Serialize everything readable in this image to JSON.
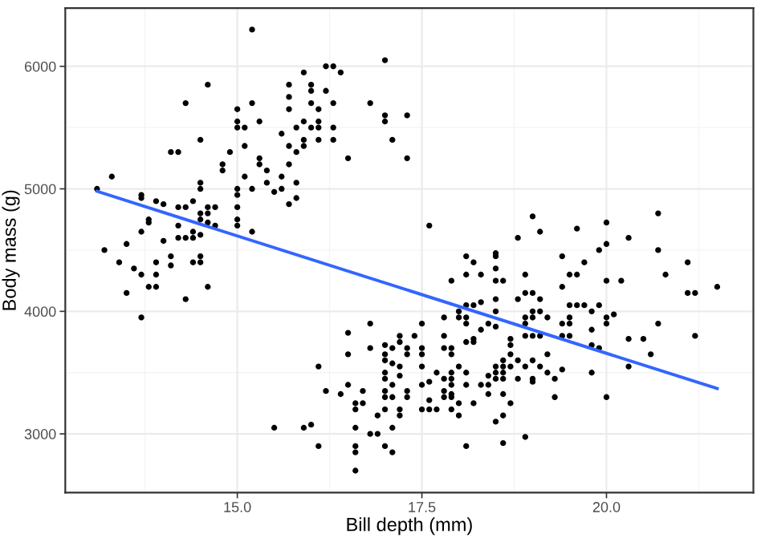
{
  "chart_data": {
    "type": "scatter",
    "xlabel": "Bill depth (mm)",
    "ylabel": "Body mass (g)",
    "xlim": [
      12.67,
      21.99
    ],
    "ylim": [
      2520,
      6475
    ],
    "xticks": [
      {
        "value": 15,
        "label": "15.0"
      },
      {
        "value": 17.5,
        "label": "17.5"
      },
      {
        "value": 20,
        "label": "20.0"
      }
    ],
    "yticks": [
      3000,
      4000,
      5000,
      6000
    ],
    "grid": true,
    "marker": "circle",
    "series": [
      {
        "color": "#000000",
        "x": [
          13.1,
          13.3,
          13.2,
          13.4,
          13.5,
          13.5,
          13.6,
          13.7,
          13.7,
          13.7,
          13.7,
          13.7,
          13.8,
          13.8,
          13.8,
          13.9,
          13.9,
          13.9,
          13.9,
          14.0,
          14.0,
          14.1,
          14.1,
          14.1,
          14.2,
          14.2,
          14.2,
          14.2,
          14.3,
          14.3,
          14.3,
          14.3,
          14.4,
          14.4,
          14.4,
          14.4,
          14.5,
          14.5,
          14.5,
          14.5,
          14.5,
          14.5,
          14.5,
          14.5,
          14.6,
          14.6,
          14.6,
          14.6,
          14.6,
          14.7,
          14.7,
          14.8,
          14.8,
          14.9,
          15.0,
          15.0,
          15.0,
          15.0,
          15.0,
          15.0,
          15.0,
          15.0,
          15.1,
          15.1,
          15.1,
          15.2,
          15.2,
          15.2,
          15.2,
          15.3,
          15.3,
          15.3,
          15.4,
          15.4,
          15.5,
          15.6,
          15.6,
          15.6,
          15.7,
          15.7,
          15.7,
          15.7,
          15.7,
          15.7,
          15.8,
          15.8,
          15.8,
          15.8,
          15.9,
          15.9,
          15.9,
          15.9,
          16.0,
          16.0,
          16.0,
          16.0,
          16.1,
          16.1,
          16.1,
          16.1,
          16.2,
          16.2,
          16.3,
          16.3,
          16.3,
          16.3,
          16.4,
          16.5,
          16.8,
          17.0,
          17.0,
          17.0,
          17.1,
          17.3,
          17.3,
          15.5,
          15.9,
          16.0,
          16.1,
          16.1,
          16.2,
          16.4,
          16.5,
          16.5,
          16.5,
          16.6,
          16.6,
          16.6,
          16.6,
          16.6,
          16.6,
          16.7,
          16.7,
          16.8,
          16.8,
          16.8,
          16.9,
          16.9,
          17.0,
          17.0,
          17.0,
          17.0,
          17.0,
          17.0,
          17.0,
          17.0,
          17.0,
          17.1,
          17.1,
          17.1,
          17.1,
          17.1,
          17.1,
          17.2,
          17.2,
          17.2,
          17.2,
          17.2,
          17.2,
          17.3,
          17.3,
          17.3,
          17.3,
          17.4,
          17.5,
          17.5,
          17.5,
          17.5,
          17.5,
          17.5,
          17.6,
          17.6,
          17.6,
          17.6,
          17.7,
          17.7,
          17.8,
          17.8,
          17.8,
          17.8,
          17.8,
          17.8,
          17.9,
          17.9,
          17.9,
          17.9,
          17.9,
          17.9,
          17.9,
          17.9,
          17.9,
          18.0,
          18.0,
          18.0,
          18.0,
          18.0,
          18.1,
          18.1,
          18.1,
          18.1,
          18.1,
          18.1,
          18.1,
          18.1,
          18.1,
          18.2,
          18.2,
          18.2,
          18.2,
          18.2,
          18.3,
          18.3,
          18.3,
          18.3,
          18.4,
          18.4,
          18.4,
          18.4,
          18.5,
          18.5,
          18.5,
          18.5,
          18.5,
          18.5,
          18.5,
          18.5,
          18.5,
          18.5,
          18.5,
          18.6,
          18.6,
          18.6,
          18.6,
          18.6,
          18.6,
          18.6,
          18.6,
          18.7,
          18.7,
          18.7,
          18.7,
          18.7,
          18.8,
          18.8,
          18.8,
          18.8,
          18.9,
          18.9,
          18.9,
          18.9,
          18.9,
          18.9,
          18.9,
          19.0,
          19.0,
          19.0,
          19.0,
          19.0,
          19.0,
          19.0,
          19.0,
          19.1,
          19.1,
          19.1,
          19.1,
          19.1,
          19.2,
          19.2,
          19.2,
          19.3,
          19.3,
          19.4,
          19.4,
          19.4,
          19.4,
          19.4,
          19.5,
          19.5,
          19.5,
          19.5,
          19.5,
          19.6,
          19.6,
          19.6,
          19.7,
          19.7,
          19.8,
          19.8,
          19.8,
          19.8,
          19.9,
          19.9,
          19.9,
          20.0,
          20.0,
          20.0,
          20.0,
          20.0,
          20.0,
          20.1,
          20.2,
          20.3,
          20.3,
          20.3,
          20.5,
          20.6,
          20.7,
          20.7,
          20.7,
          20.8,
          21.1,
          21.1,
          21.2,
          21.2,
          21.5
        ],
        "values": [
          5000,
          5100,
          4500,
          4400,
          4550,
          4150,
          4350,
          4950,
          4925,
          4650,
          4300,
          3950,
          4750,
          4725,
          4200,
          4900,
          4400,
          4300,
          4200,
          4875,
          4575,
          5300,
          4450,
          4375,
          5300,
          4850,
          4700,
          4600,
          5700,
          4850,
          4600,
          4100,
          4900,
          4650,
          4600,
          4400,
          5400,
          5050,
          5000,
          4800,
          4750,
          4625,
          4450,
          4400,
          5850,
          4850,
          4800,
          4725,
          4200,
          4850,
          4700,
          5200,
          5150,
          5300,
          5650,
          5550,
          5500,
          5000,
          4950,
          4850,
          4750,
          4700,
          5500,
          5350,
          5100,
          6300,
          5700,
          5000,
          4650,
          5550,
          5250,
          5200,
          5150,
          5050,
          4975,
          5450,
          5100,
          5000,
          5850,
          5750,
          5650,
          5350,
          5200,
          4875,
          5500,
          5300,
          5050,
          4925,
          5950,
          5550,
          5400,
          5350,
          5850,
          5800,
          5700,
          5500,
          5650,
          5550,
          5500,
          5400,
          6000,
          5800,
          6000,
          5700,
          5500,
          5400,
          5950,
          5250,
          5700,
          6050,
          5600,
          5550,
          5400,
          5600,
          5250,
          3050,
          3050,
          3075,
          3550,
          2900,
          3350,
          3325,
          3825,
          3650,
          3400,
          3250,
          3200,
          3050,
          2900,
          2850,
          2700,
          3350,
          3250,
          3900,
          3700,
          3000,
          3150,
          3000,
          3725,
          3650,
          3600,
          3500,
          3450,
          3350,
          3300,
          3200,
          2900,
          3700,
          3575,
          3400,
          3300,
          3050,
          2850,
          3800,
          3750,
          3550,
          3475,
          3200,
          3150,
          3700,
          3650,
          3350,
          3300,
          3800,
          3900,
          3700,
          3650,
          3550,
          3400,
          3200,
          4700,
          3425,
          3275,
          3200,
          3200,
          3500,
          3950,
          3800,
          3700,
          3450,
          3350,
          3300,
          4250,
          3700,
          3650,
          3500,
          3450,
          3400,
          3325,
          3300,
          3200,
          4000,
          3950,
          3550,
          3250,
          3150,
          4450,
          4300,
          4050,
          3950,
          3900,
          3750,
          3500,
          3400,
          2900,
          4400,
          4050,
          3775,
          3750,
          3250,
          4300,
          4075,
          3850,
          3400,
          3900,
          3475,
          3400,
          3325,
          4475,
          4450,
          4350,
          4250,
          4100,
          4000,
          3875,
          3550,
          3500,
          3450,
          3100,
          4250,
          3600,
          3550,
          3500,
          3450,
          3325,
          3150,
          2925,
          3775,
          3725,
          3650,
          3550,
          3250,
          4600,
          4100,
          3600,
          3450,
          4300,
          4150,
          3950,
          3900,
          3800,
          3550,
          2975,
          4775,
          4150,
          4000,
          3950,
          3800,
          3600,
          3450,
          3425,
          4650,
          4100,
          4000,
          3800,
          3550,
          3950,
          3650,
          3500,
          3450,
          3300,
          4450,
          4200,
          3900,
          3800,
          3525,
          4300,
          4050,
          3950,
          3900,
          3800,
          4675,
          4300,
          4050,
          4400,
          4050,
          4000,
          3850,
          3725,
          3500,
          4500,
          4050,
          3700,
          4725,
          4550,
          4250,
          3950,
          3900,
          3300,
          3975,
          4250,
          4600,
          3775,
          3550,
          3775,
          3650,
          4800,
          4500,
          3900,
          4300,
          4400,
          4150,
          4150,
          3800,
          4200
        ]
      },
      {
        "type": "line",
        "color": "#3366ff",
        "marker": "none",
        "line_style": "solid",
        "x": [
          13.1,
          21.5
        ],
        "values": [
          4980,
          3370
        ]
      }
    ]
  }
}
